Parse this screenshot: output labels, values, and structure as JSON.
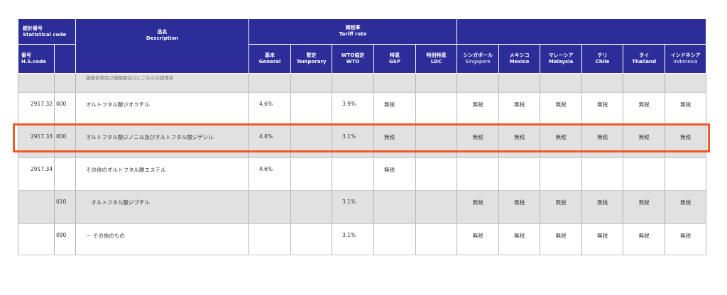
{
  "header": {
    "stat_code_jp": "統計番号",
    "stat_code_en": "Statistical code",
    "hs_jp": "番号",
    "hs_en": "H.S.code",
    "desc_jp": "品名",
    "desc_en": "Description",
    "tariff_jp": "関税率",
    "tariff_en": "Tariff rate",
    "rate_cols": [
      {
        "jp": "基本",
        "en": "General"
      },
      {
        "jp": "暫定",
        "en": "Temporary"
      },
      {
        "jp": "WTO協定",
        "en": "WTO"
      },
      {
        "jp": "特恵",
        "en": "GSP"
      },
      {
        "jp": "特別特恵",
        "en": "LDC"
      }
    ],
    "fta_cols": [
      {
        "jp": "シンガポール",
        "en": "Singapore"
      },
      {
        "jp": "メキシコ",
        "en": "Mexico"
      },
      {
        "jp": "マレーシア",
        "en": "Malaysia"
      },
      {
        "jp": "チリ",
        "en": "Chile"
      },
      {
        "jp": "タイ",
        "en": "Thailand"
      },
      {
        "jp": "インドネシア",
        "en": "Indonesia"
      }
    ]
  },
  "rows": [
    {
      "hs": "",
      "sub": "",
      "desc": "過酸化物及び過酸酸並びにこれらの誘導体",
      "general": "",
      "temporary": "",
      "wto": "",
      "gsp": "",
      "ldc": "",
      "fta": [
        "",
        "",
        "",
        "",
        "",
        ""
      ]
    },
    {
      "hs": "2917.32",
      "sub": "000",
      "desc": "オルトフタル酸ジオクチル",
      "general": "4.6%",
      "temporary": "",
      "wto": "3.9%",
      "gsp": "無税",
      "ldc": "",
      "fta": [
        "無税",
        "無税",
        "無税",
        "無税",
        "無税",
        "無税"
      ]
    },
    {
      "hs": "2917.33",
      "sub": "000",
      "desc": "オルトフタル酸ジノニル及びオルトフタル酸ジデシル",
      "general": "4.6%",
      "temporary": "",
      "wto": "3.1%",
      "gsp": "無税",
      "ldc": "",
      "fta": [
        "無税",
        "無税",
        "無税",
        "無税",
        "無税",
        "無税"
      ]
    },
    {
      "hs": "2917.34",
      "sub": "",
      "desc": "その他のオルトフタル酸エステル",
      "general": "4.6%",
      "temporary": "",
      "wto": "",
      "gsp": "無税",
      "ldc": "",
      "fta": [
        "",
        "",
        "",
        "",
        "",
        ""
      ]
    },
    {
      "hs": "",
      "sub": "010",
      "desc": "　オルトフタル酸ジブチル",
      "general": "",
      "temporary": "",
      "wto": "3.1%",
      "gsp": "",
      "ldc": "",
      "fta": [
        "無税",
        "無税",
        "無税",
        "無税",
        "無税",
        "無税"
      ]
    },
    {
      "hs": "",
      "sub": "090",
      "desc": "－ その他のもの",
      "general": "",
      "temporary": "",
      "wto": "3.1%",
      "gsp": "",
      "ldc": "",
      "fta": [
        "無税",
        "無税",
        "無税",
        "無税",
        "無税",
        "無税"
      ]
    }
  ],
  "highlight_color": "#f05a24",
  "header_color": "#2d2d99"
}
